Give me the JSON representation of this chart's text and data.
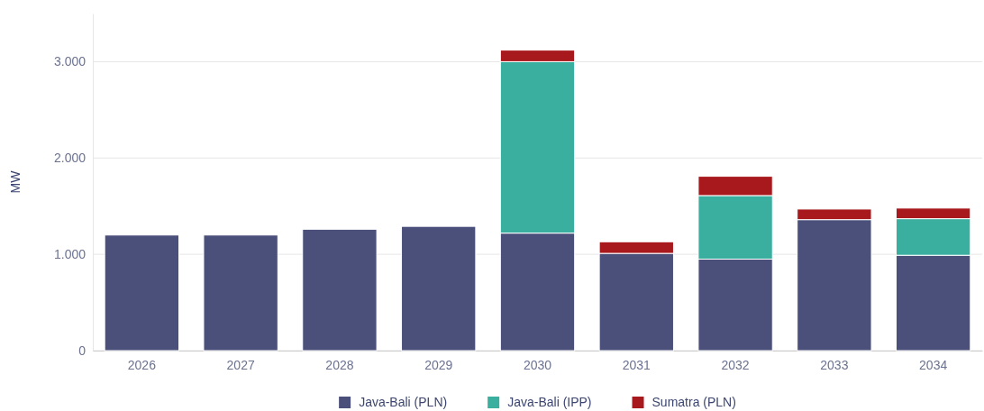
{
  "chart_data": {
    "type": "bar",
    "stacked": true,
    "ylabel": "MW",
    "categories": [
      "2026",
      "2027",
      "2028",
      "2029",
      "2030",
      "2031",
      "2032",
      "2033",
      "2034"
    ],
    "series": [
      {
        "name": "Java-Bali (PLN)",
        "color": "#4a5079",
        "values": [
          1200,
          1200,
          1260,
          1290,
          1220,
          1010,
          950,
          1360,
          990
        ]
      },
      {
        "name": "Java-Bali (IPP)",
        "color": "#3aafa0",
        "values": [
          null,
          null,
          null,
          null,
          1780,
          null,
          660,
          null,
          380
        ]
      },
      {
        "name": "Sumatra (PLN)",
        "color": "#a8191d",
        "values": [
          null,
          null,
          null,
          null,
          120,
          120,
          200,
          110,
          110
        ]
      }
    ],
    "ylim": [
      0,
      3500
    ],
    "yticks": [
      0,
      {
        "value": 1000,
        "label": "1.000"
      },
      {
        "value": 2000,
        "label": "2.000"
      },
      {
        "value": 3000,
        "label": "3.000"
      }
    ],
    "grid": "y",
    "legend": "bottom"
  }
}
